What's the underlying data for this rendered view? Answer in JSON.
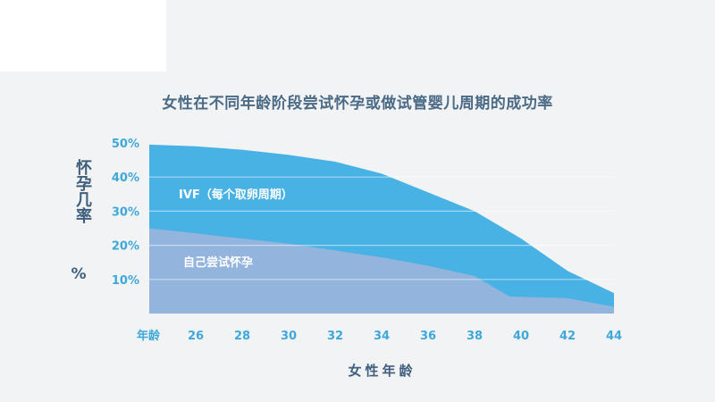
{
  "title": "女性在不同年龄阶段尝试怀孕或做试管婴儿周期的成功率",
  "y_axis_label": "怀孕几率",
  "y_axis_unit": "%",
  "x_axis_label": "女性年龄",
  "chart_data": {
    "type": "area",
    "title": "女性在不同年龄阶段尝试怀孕或做试管婴儿周期的成功率",
    "xlabel": "女性年龄",
    "ylabel": "怀孕几率 %",
    "xlim": [
      24,
      44
    ],
    "ylim": [
      0,
      50
    ],
    "x_ticks": [
      {
        "value": 24,
        "label": "年龄"
      },
      {
        "value": 26,
        "label": "26"
      },
      {
        "value": 28,
        "label": "28"
      },
      {
        "value": 30,
        "label": "30"
      },
      {
        "value": 32,
        "label": "32"
      },
      {
        "value": 34,
        "label": "34"
      },
      {
        "value": 36,
        "label": "36"
      },
      {
        "value": 38,
        "label": "38"
      },
      {
        "value": 40,
        "label": "40"
      },
      {
        "value": 42,
        "label": "42"
      },
      {
        "value": 44,
        "label": "44"
      }
    ],
    "y_ticks": [
      {
        "value": 10,
        "label": "10%"
      },
      {
        "value": 20,
        "label": "20%"
      },
      {
        "value": 30,
        "label": "30%"
      },
      {
        "value": 40,
        "label": "40%"
      },
      {
        "value": 50,
        "label": "50%"
      }
    ],
    "grid": true,
    "series": [
      {
        "name": "IVF（每个取卵周期）",
        "color": "#47b2e3",
        "points": [
          [
            24,
            49.5
          ],
          [
            26,
            49
          ],
          [
            28,
            48
          ],
          [
            30,
            46.5
          ],
          [
            32,
            44.5
          ],
          [
            34,
            41
          ],
          [
            36,
            35.5
          ],
          [
            38,
            30
          ],
          [
            40,
            22
          ],
          [
            42,
            12.5
          ],
          [
            44,
            6
          ]
        ]
      },
      {
        "name": "自己尝试怀孕",
        "color": "#92b4dd",
        "points": [
          [
            24,
            25
          ],
          [
            26,
            23.5
          ],
          [
            28,
            22
          ],
          [
            30,
            20.5
          ],
          [
            32,
            18.5
          ],
          [
            34,
            16.5
          ],
          [
            36,
            14
          ],
          [
            38,
            11
          ],
          [
            39.5,
            5
          ],
          [
            42,
            4.5
          ],
          [
            44,
            2
          ]
        ]
      }
    ]
  }
}
